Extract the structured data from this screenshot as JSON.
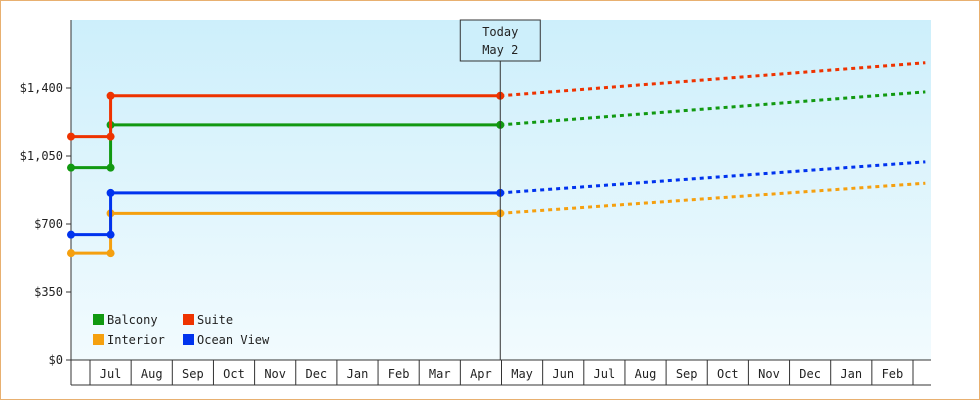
{
  "chart_data": {
    "type": "line",
    "title": "",
    "xlabel": "",
    "ylabel": "",
    "ylim": [
      0,
      1750
    ],
    "y_ticks": [
      {
        "value": 0,
        "label": "$0"
      },
      {
        "value": 350,
        "label": "$350"
      },
      {
        "value": 700,
        "label": "$700"
      },
      {
        "value": 1050,
        "label": "$1,050"
      },
      {
        "value": 1400,
        "label": "$1,400"
      }
    ],
    "month_labels": [
      "Jul",
      "Aug",
      "Sep",
      "Oct",
      "Nov",
      "Dec",
      "Jan",
      "Feb",
      "Mar",
      "Apr",
      "May",
      "Jun",
      "Jul",
      "Aug",
      "Sep",
      "Oct",
      "Nov",
      "Dec",
      "Jan",
      "Feb"
    ],
    "today": {
      "line1": "Today",
      "line2": "May 2",
      "month_index": 9.97
    },
    "legend_position": "bottom-left",
    "grid": false,
    "series": [
      {
        "name": "Balcony",
        "color": "#119911",
        "history": [
          [
            -0.5,
            990
          ],
          [
            0.5,
            990
          ],
          [
            0.5,
            1210
          ],
          [
            9.97,
            1210
          ]
        ],
        "forecast_end": [
          20.3,
          1380
        ]
      },
      {
        "name": "Suite",
        "color": "#ee3300",
        "history": [
          [
            -0.5,
            1150
          ],
          [
            0.5,
            1150
          ],
          [
            0.5,
            1360
          ],
          [
            9.97,
            1360
          ]
        ],
        "forecast_end": [
          20.3,
          1530
        ]
      },
      {
        "name": "Interior",
        "color": "#f5a00f",
        "history": [
          [
            -0.5,
            550
          ],
          [
            0.5,
            550
          ],
          [
            0.5,
            755
          ],
          [
            9.97,
            755
          ]
        ],
        "forecast_end": [
          20.3,
          910
        ]
      },
      {
        "name": "Ocean View",
        "color": "#0033ee",
        "history": [
          [
            -0.5,
            645
          ],
          [
            0.5,
            645
          ],
          [
            0.5,
            860
          ],
          [
            9.97,
            860
          ]
        ],
        "forecast_end": [
          20.3,
          1020
        ]
      }
    ]
  }
}
